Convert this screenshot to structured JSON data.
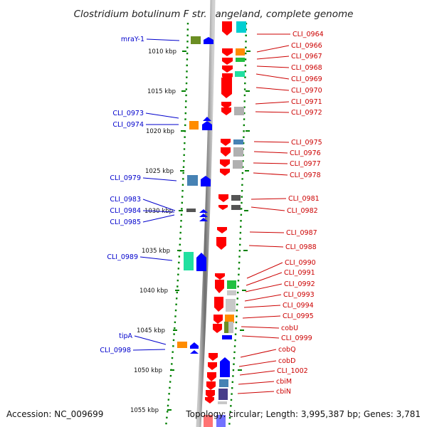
{
  "title": "Clostridium botulinum F str. Langeland, complete genome",
  "footer": {
    "accession": "Accession: NC_009699",
    "topology": "Topology: circular; Length: 3,995,387 bp; Genes: 3,781"
  },
  "ticks": [
    "1010 kbp",
    "1015 kbp",
    "1020 kbp",
    "1025 kbp",
    "1030 kbp",
    "1035 kbp",
    "1040 kbp",
    "1045 kbp",
    "1050 kbp",
    "1055 kbp"
  ],
  "left_labels": [
    "mraY-1",
    "CLI_0973",
    "CLI_0974",
    "CLI_0979",
    "CLI_0983",
    "CLI_0984",
    "CLI_0985",
    "CLI_0989",
    "tipA",
    "CLI_0998"
  ],
  "right_labels": [
    "CLI_0964",
    "CLI_0966",
    "CLI_0967",
    "CLI_0968",
    "CLI_0969",
    "CLI_0970",
    "CLI_0971",
    "CLI_0972",
    "CLI_0975",
    "CLI_0976",
    "CLI_0977",
    "CLI_0978",
    "CLI_0981",
    "CLI_0982",
    "CLI_0987",
    "CLI_0988",
    "CLI_0990",
    "CLI_0991",
    "CLI_0992",
    "CLI_0993",
    "CLI_0994",
    "CLI_0995",
    "cobU",
    "CLI_0999",
    "cobQ",
    "cobD",
    "CLI_1002",
    "cbiM",
    "cbiN"
  ],
  "colors": {
    "forward": "#0000ff",
    "reverse": "#ff0000",
    "backbone": "#888888",
    "dots": "#008000",
    "labelLeft": "#0000cc",
    "labelRight": "#cc0000"
  }
}
